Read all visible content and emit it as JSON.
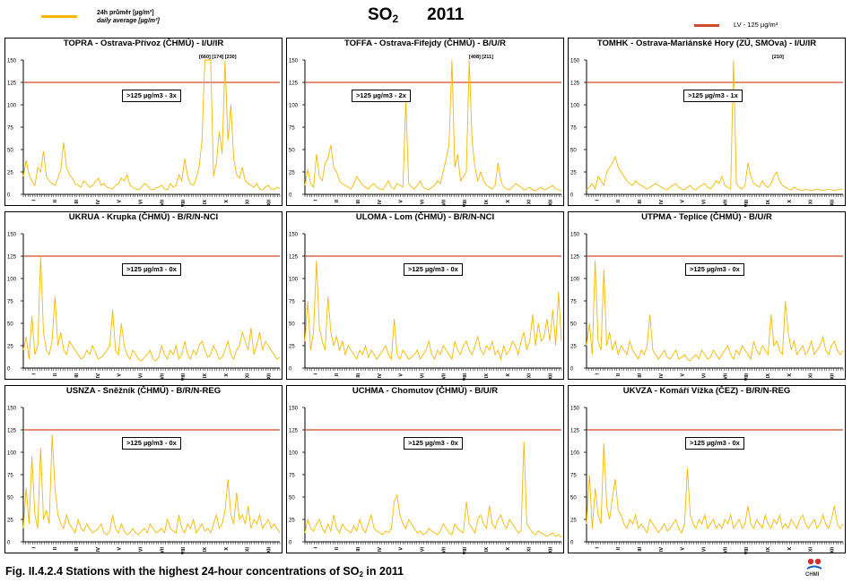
{
  "header": {
    "legend_avg_line1": "24h průměr [µg/m³]",
    "legend_avg_line2": "daily average [µg/m³]",
    "title_main": "SO",
    "title_sub": "2",
    "title_year": "2011",
    "legend_limit": "LV - 125 µg/m³"
  },
  "colors": {
    "series": "#F5B800",
    "limit": "#D04A2A",
    "axis": "#000000"
  },
  "caption": {
    "prefix": "Fig. II.4.2.4  Stations with the highest 24-hour concentrations of SO",
    "sub": "2",
    "suffix": " in 2011"
  },
  "logo": {
    "text": "CHMI"
  },
  "panels": [
    {
      "title": "TOPRA - Ostrava-Přívoz (ČHMÚ) - I/U/IR",
      "annotation": ">125 µg/m3 - 3x",
      "peak_labels": "[660] [174] [230]"
    },
    {
      "title": "TOFFA - Ostrava-Fifejdy (ČHMÚ) - B/U/R",
      "annotation": ">125 µg/m3 - 2x",
      "peak_labels": "[408] [211]"
    },
    {
      "title": "TOMHK - Ostrava-Mariánské Hory (ZÚ, SMOva) - I/U/IR",
      "annotation": ">125 µg/m3 - 1x",
      "peak_labels": "[210]"
    },
    {
      "title": "UKRUA - Krupka (ČHMÚ) - B/R/N-NCI",
      "annotation": ">125 µg/m3 - 0x",
      "peak_labels": ""
    },
    {
      "title": "ULOMA - Lom (ČHMÚ) - B/R/N-NCI",
      "annotation": ">125 µg/m3 - 0x",
      "peak_labels": ""
    },
    {
      "title": "UTPMA - Teplice (ČHMÚ) - B/U/R",
      "annotation": ">125 µg/m3 - 0x",
      "peak_labels": ""
    },
    {
      "title": "USNZA - Sněžník (ČHMÚ) - B/R/N-REG",
      "annotation": ">125 µg/m3 - 0x",
      "peak_labels": ""
    },
    {
      "title": "UCHMA - Chomutov (ČHMÚ) - B/U/R",
      "annotation": ">125 µg/m3 - 0x",
      "peak_labels": ""
    },
    {
      "title": "UKVZA - Komáří Vížka (ČEZ) - B/R/N-REG",
      "annotation": ">125 µg/m3 - 0x",
      "peak_labels": ""
    }
  ],
  "chart_data": [
    {
      "type": "line",
      "title": "TOPRA - Ostrava-Přívoz (ČHMÚ) - I/U/IR",
      "ylim": [
        0,
        150
      ],
      "yticks": [
        0,
        25,
        50,
        75,
        100,
        125,
        150
      ],
      "xticks": [
        "I",
        "II",
        "III",
        "IV",
        "V",
        "VI",
        "VII",
        "VIII",
        "IX",
        "X",
        "XI",
        "XII"
      ],
      "limit_value": 125,
      "series": [
        {
          "values": [
            20,
            38,
            22,
            15,
            10,
            30,
            25,
            48,
            20,
            15,
            12,
            10,
            18,
            28,
            58,
            30,
            22,
            18,
            12,
            10,
            8,
            15,
            12,
            8,
            10,
            14,
            18,
            10,
            12,
            8,
            7,
            6,
            10,
            12,
            18,
            15,
            22,
            10,
            8,
            6,
            5,
            8,
            12,
            10,
            6,
            5,
            7,
            8,
            10,
            6,
            5,
            12,
            8,
            10,
            22,
            15,
            40,
            20,
            12,
            10,
            18,
            30,
            60,
            150,
            150,
            150,
            20,
            35,
            70,
            45,
            150,
            60,
            100,
            40,
            22,
            18,
            30,
            15,
            12,
            10,
            8,
            12,
            6,
            5,
            8,
            10,
            6,
            5,
            8,
            6
          ]
        }
      ]
    },
    {
      "type": "line",
      "title": "TOFFA - Ostrava-Fifejdy (ČHMÚ) - B/U/R",
      "ylim": [
        0,
        150
      ],
      "yticks": [
        0,
        25,
        50,
        75,
        100,
        125,
        150
      ],
      "xticks": [
        "I",
        "II",
        "III",
        "IV",
        "V",
        "VI",
        "VII",
        "VIII",
        "IX",
        "X",
        "XI",
        "XII"
      ],
      "limit_value": 125,
      "series": [
        {
          "values": [
            10,
            28,
            12,
            8,
            45,
            20,
            15,
            35,
            40,
            55,
            30,
            25,
            15,
            12,
            10,
            8,
            6,
            12,
            20,
            15,
            10,
            8,
            6,
            10,
            12,
            8,
            6,
            5,
            10,
            15,
            8,
            6,
            12,
            10,
            8,
            105,
            12,
            8,
            6,
            10,
            15,
            8,
            6,
            5,
            8,
            10,
            15,
            12,
            25,
            40,
            55,
            150,
            30,
            45,
            15,
            20,
            25,
            150,
            60,
            30,
            15,
            25,
            15,
            10,
            8,
            6,
            10,
            35,
            15,
            8,
            6,
            5,
            8,
            12,
            10,
            8,
            5,
            6,
            8,
            5,
            4,
            6,
            8,
            5,
            6,
            8,
            10,
            6,
            5,
            4
          ]
        }
      ]
    },
    {
      "type": "line",
      "title": "TOMHK - Ostrava-Mariánské Hory (ZÚ, SMOva) - I/U/IR",
      "ylim": [
        0,
        150
      ],
      "yticks": [
        0,
        25,
        50,
        75,
        100,
        125,
        150
      ],
      "xticks": [
        "I",
        "II",
        "III",
        "IV",
        "V",
        "VI",
        "VII",
        "VIII",
        "IX",
        "X",
        "XI",
        "XII"
      ],
      "limit_value": 125,
      "series": [
        {
          "values": [
            5,
            8,
            12,
            6,
            20,
            15,
            10,
            25,
            30,
            35,
            42,
            30,
            25,
            20,
            15,
            12,
            10,
            15,
            12,
            10,
            8,
            6,
            8,
            10,
            12,
            10,
            8,
            6,
            5,
            8,
            10,
            12,
            8,
            6,
            5,
            8,
            10,
            6,
            5,
            8,
            10,
            12,
            8,
            6,
            10,
            15,
            12,
            20,
            10,
            8,
            6,
            150,
            12,
            8,
            6,
            10,
            35,
            20,
            12,
            10,
            8,
            15,
            10,
            8,
            12,
            20,
            25,
            15,
            10,
            8,
            6,
            5,
            8,
            6,
            5,
            4,
            6,
            5,
            4,
            5,
            6,
            5,
            4,
            5,
            6,
            5,
            4,
            5,
            6,
            5
          ]
        }
      ]
    },
    {
      "type": "line",
      "title": "UKRUA - Krupka (ČHMÚ) - B/R/N-NCI",
      "ylim": [
        0,
        150
      ],
      "yticks": [
        0,
        25,
        50,
        75,
        100,
        125,
        150
      ],
      "xticks": [
        "I",
        "II",
        "III",
        "IV",
        "V",
        "VI",
        "VII",
        "VIII",
        "IX",
        "X",
        "XI",
        "XII"
      ],
      "limit_value": 125,
      "series": [
        {
          "values": [
            20,
            35,
            10,
            58,
            15,
            25,
            125,
            40,
            20,
            15,
            30,
            80,
            25,
            40,
            20,
            15,
            30,
            25,
            20,
            15,
            10,
            12,
            20,
            15,
            25,
            18,
            10,
            12,
            15,
            20,
            25,
            65,
            20,
            15,
            50,
            25,
            15,
            10,
            20,
            15,
            10,
            8,
            12,
            15,
            20,
            10,
            8,
            12,
            25,
            15,
            10,
            20,
            15,
            25,
            10,
            15,
            30,
            15,
            10,
            20,
            15,
            25,
            30,
            20,
            12,
            15,
            25,
            18,
            10,
            12,
            20,
            30,
            15,
            10,
            20,
            25,
            40,
            30,
            20,
            45,
            15,
            25,
            40,
            20,
            30,
            25,
            20,
            15,
            10,
            12
          ]
        }
      ]
    },
    {
      "type": "line",
      "title": "ULOMA - Lom (ČHMÚ) - B/R/N-NCI",
      "ylim": [
        0,
        150
      ],
      "yticks": [
        0,
        25,
        50,
        75,
        100,
        125,
        150
      ],
      "xticks": [
        "I",
        "II",
        "III",
        "IV",
        "V",
        "VI",
        "VII",
        "VIII",
        "IX",
        "X",
        "XI",
        "XII"
      ],
      "limit_value": 125,
      "series": [
        {
          "values": [
            30,
            75,
            20,
            40,
            120,
            45,
            30,
            20,
            80,
            40,
            25,
            35,
            20,
            30,
            15,
            25,
            20,
            15,
            10,
            20,
            15,
            25,
            12,
            20,
            15,
            10,
            15,
            20,
            25,
            15,
            10,
            55,
            15,
            10,
            20,
            15,
            10,
            12,
            15,
            20,
            10,
            15,
            20,
            30,
            15,
            10,
            20,
            15,
            25,
            20,
            15,
            10,
            30,
            20,
            15,
            25,
            30,
            20,
            15,
            25,
            35,
            20,
            15,
            25,
            20,
            30,
            15,
            20,
            10,
            25,
            15,
            20,
            30,
            25,
            15,
            30,
            40,
            20,
            30,
            60,
            25,
            50,
            30,
            35,
            55,
            30,
            65,
            25,
            85,
            30
          ]
        }
      ]
    },
    {
      "type": "line",
      "title": "UTPMA - Teplice (ČHMÚ) - B/U/R",
      "ylim": [
        0,
        150
      ],
      "yticks": [
        0,
        25,
        50,
        75,
        100,
        125,
        150
      ],
      "xticks": [
        "I",
        "II",
        "III",
        "IV",
        "V",
        "VI",
        "VII",
        "VIII",
        "IX",
        "X",
        "XI",
        "XII"
      ],
      "limit_value": 125,
      "series": [
        {
          "values": [
            25,
            50,
            15,
            120,
            30,
            20,
            110,
            25,
            40,
            20,
            30,
            15,
            25,
            20,
            15,
            30,
            20,
            15,
            10,
            20,
            15,
            25,
            60,
            20,
            15,
            10,
            15,
            20,
            12,
            10,
            15,
            20,
            10,
            12,
            15,
            10,
            8,
            12,
            15,
            10,
            20,
            15,
            10,
            12,
            20,
            15,
            10,
            15,
            20,
            25,
            15,
            10,
            20,
            15,
            25,
            20,
            15,
            10,
            30,
            20,
            15,
            25,
            20,
            15,
            60,
            25,
            30,
            20,
            15,
            75,
            40,
            20,
            30,
            15,
            20,
            25,
            15,
            20,
            30,
            15,
            20,
            25,
            35,
            20,
            15,
            25,
            30,
            20,
            15,
            20
          ]
        }
      ]
    },
    {
      "type": "line",
      "title": "USNZA - Sněžník (ČHMÚ) - B/R/N-REG",
      "ylim": [
        0,
        150
      ],
      "yticks": [
        0,
        25,
        50,
        75,
        100,
        125,
        150
      ],
      "xticks": [
        "I",
        "II",
        "III",
        "IV",
        "V",
        "VI",
        "VII",
        "VIII",
        "IX",
        "X",
        "XI",
        "XII"
      ],
      "limit_value": 125,
      "series": [
        {
          "values": [
            15,
            60,
            20,
            95,
            30,
            15,
            105,
            25,
            35,
            20,
            120,
            60,
            30,
            20,
            15,
            30,
            20,
            15,
            10,
            25,
            15,
            12,
            20,
            15,
            10,
            12,
            15,
            20,
            10,
            8,
            12,
            30,
            15,
            10,
            20,
            12,
            8,
            10,
            15,
            10,
            8,
            12,
            15,
            10,
            20,
            15,
            10,
            12,
            15,
            10,
            25,
            15,
            12,
            10,
            30,
            15,
            10,
            20,
            15,
            25,
            10,
            15,
            20,
            12,
            15,
            10,
            20,
            30,
            15,
            20,
            35,
            70,
            30,
            20,
            55,
            25,
            30,
            20,
            40,
            15,
            25,
            20,
            30,
            15,
            20,
            25,
            15,
            20,
            15,
            10
          ]
        }
      ]
    },
    {
      "type": "line",
      "title": "UCHMA - Chomutov (ČHMÚ) - B/U/R",
      "ylim": [
        0,
        150
      ],
      "yticks": [
        0,
        25,
        50,
        75,
        100,
        125,
        150
      ],
      "xticks": [
        "I",
        "II",
        "III",
        "IV",
        "V",
        "VI",
        "VII",
        "VIII",
        "IX",
        "X",
        "XI",
        "XII"
      ],
      "limit_value": 125,
      "series": [
        {
          "values": [
            10,
            25,
            15,
            12,
            20,
            25,
            15,
            10,
            20,
            12,
            30,
            15,
            10,
            20,
            15,
            12,
            10,
            18,
            12,
            25,
            15,
            10,
            20,
            30,
            15,
            12,
            10,
            8,
            12,
            10,
            15,
            45,
            52,
            30,
            20,
            15,
            25,
            20,
            15,
            10,
            12,
            8,
            10,
            15,
            12,
            10,
            8,
            12,
            20,
            15,
            10,
            8,
            20,
            15,
            12,
            10,
            45,
            20,
            15,
            10,
            25,
            30,
            20,
            15,
            40,
            20,
            15,
            25,
            30,
            20,
            15,
            25,
            20,
            15,
            10,
            12,
            112,
            20,
            15,
            10,
            8,
            12,
            10,
            8,
            6,
            8,
            10,
            6,
            8,
            5
          ]
        }
      ]
    },
    {
      "type": "line",
      "title": "UKVZA - Komáří Vížka (ČEZ) - B/R/N-REG",
      "ylim": [
        0,
        150
      ],
      "yticks": [
        0,
        25,
        50,
        75,
        100,
        125,
        150
      ],
      "xticks": [
        "I",
        "II",
        "III",
        "IV",
        "V",
        "VI",
        "VII",
        "VIII",
        "IX",
        "X",
        "XI",
        "XII"
      ],
      "limit_value": 125,
      "series": [
        {
          "values": [
            20,
            75,
            15,
            60,
            30,
            20,
            110,
            40,
            25,
            50,
            70,
            35,
            30,
            20,
            15,
            25,
            20,
            30,
            15,
            20,
            15,
            10,
            25,
            20,
            15,
            10,
            15,
            20,
            12,
            15,
            20,
            25,
            15,
            10,
            20,
            82,
            30,
            20,
            15,
            25,
            20,
            30,
            15,
            20,
            25,
            15,
            20,
            15,
            25,
            20,
            30,
            15,
            20,
            25,
            15,
            20,
            40,
            20,
            15,
            25,
            20,
            15,
            30,
            20,
            15,
            25,
            20,
            30,
            15,
            20,
            15,
            25,
            20,
            15,
            25,
            30,
            20,
            15,
            20,
            25,
            15,
            20,
            30,
            20,
            15,
            25,
            40,
            20,
            15,
            20
          ]
        }
      ]
    }
  ]
}
